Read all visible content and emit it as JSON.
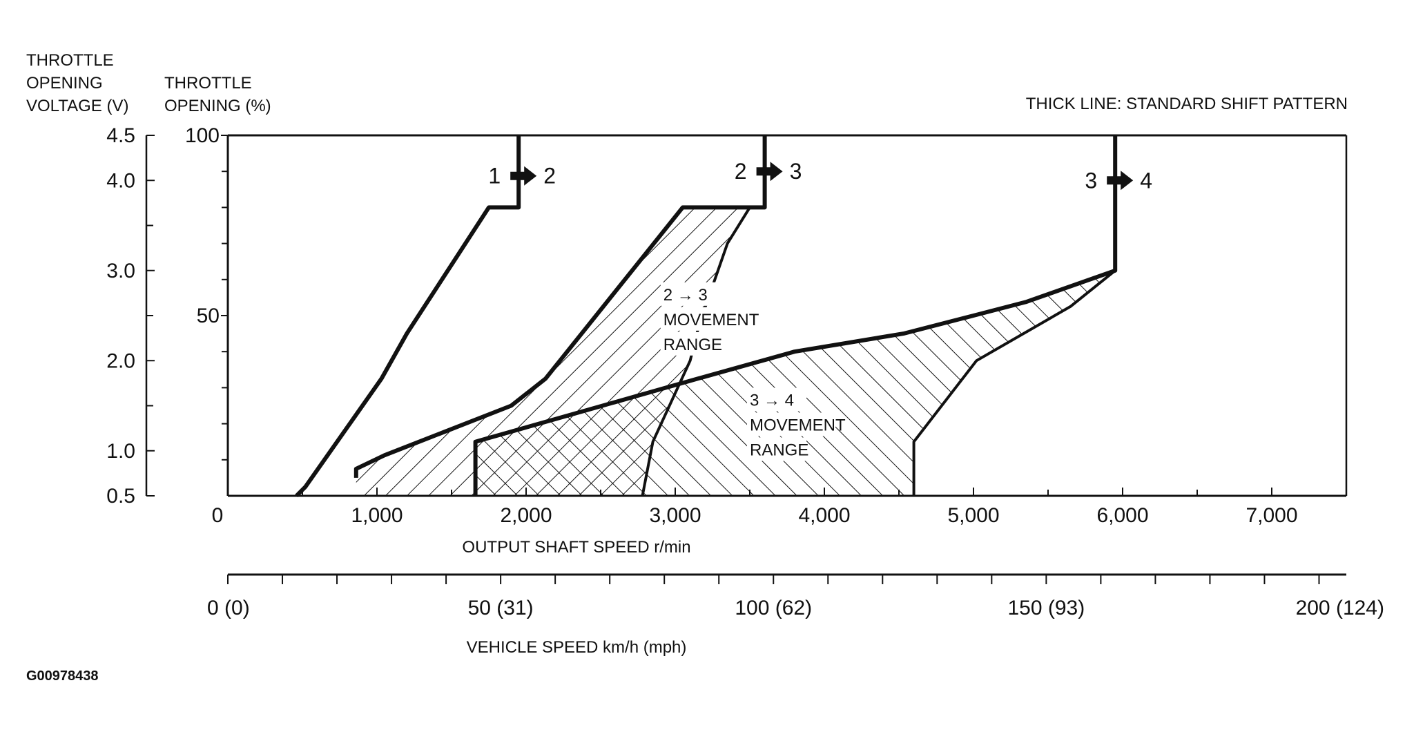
{
  "chart_data": {
    "type": "line",
    "note": "THICK LINE: STANDARD SHIFT PATTERN",
    "image_code": "G00978438",
    "y_axes": {
      "voltage": {
        "title": [
          "THROTTLE",
          "OPENING",
          "VOLTAGE (V)"
        ],
        "ticks": [
          {
            "v": 0.5,
            "label": "0.5"
          },
          {
            "v": 1.0,
            "label": "1.0"
          },
          {
            "v": 2.0,
            "label": "2.0"
          },
          {
            "v": 3.0,
            "label": "3.0"
          },
          {
            "v": 4.0,
            "label": "4.0"
          },
          {
            "v": 4.5,
            "label": "4.5"
          }
        ],
        "range": [
          0.5,
          4.5
        ]
      },
      "percent": {
        "title": [
          "THROTTLE",
          "OPENING (%)"
        ],
        "ticks": [
          {
            "v": 50,
            "label": "50"
          },
          {
            "v": 100,
            "label": "100"
          }
        ],
        "range": [
          0,
          100
        ]
      }
    },
    "x_axes": {
      "rpm": {
        "title": "OUTPUT SHAFT SPEED r/min",
        "ticks": [
          {
            "v": 0,
            "label": "0"
          },
          {
            "v": 1000,
            "label": "1,000"
          },
          {
            "v": 2000,
            "label": "2,000"
          },
          {
            "v": 3000,
            "label": "3,000"
          },
          {
            "v": 4000,
            "label": "4,000"
          },
          {
            "v": 5000,
            "label": "5,000"
          },
          {
            "v": 6000,
            "label": "6,000"
          },
          {
            "v": 7000,
            "label": "7,000"
          }
        ],
        "range": [
          0,
          7500
        ]
      },
      "speed": {
        "title": "VEHICLE SPEED km/h (mph)",
        "ticks": [
          {
            "v": 0,
            "label": "0 (0)"
          },
          {
            "v": 50,
            "label": "50 (31)"
          },
          {
            "v": 100,
            "label": "100 (62)"
          },
          {
            "v": 150,
            "label": "150 (93)"
          },
          {
            "v": 200,
            "label": "200 (124)"
          }
        ],
        "range": [
          0,
          205
        ]
      }
    },
    "series": [
      {
        "name": "1→2",
        "style": "thick",
        "points": [
          [
            460,
            0.5
          ],
          [
            520,
            0.6
          ],
          [
            1030,
            1.8
          ],
          [
            1200,
            2.3
          ],
          [
            1750,
            3.7
          ],
          [
            1950,
            3.7
          ],
          [
            1950,
            4.5
          ]
        ]
      },
      {
        "name": "2→3",
        "style": "thick",
        "points": [
          [
            860,
            0.7
          ],
          [
            860,
            0.8
          ],
          [
            1050,
            0.95
          ],
          [
            1900,
            1.5
          ],
          [
            2130,
            1.8
          ],
          [
            3050,
            3.7
          ],
          [
            3600,
            3.7
          ],
          [
            3600,
            4.5
          ]
        ]
      },
      {
        "name": "3→4",
        "style": "thick",
        "points": [
          [
            1660,
            0.5
          ],
          [
            1660,
            1.1
          ],
          [
            3150,
            1.8
          ],
          [
            3800,
            2.1
          ],
          [
            4530,
            2.3
          ],
          [
            5000,
            2.5
          ],
          [
            5350,
            2.65
          ],
          [
            5950,
            3.0
          ],
          [
            5950,
            4.5
          ]
        ]
      }
    ],
    "regions": [
      {
        "name": "2→3 MOVEMENT RANGE",
        "label": [
          "2 → 3",
          "MOVEMENT",
          "RANGE"
        ],
        "label_at": [
          2920,
          2.67
        ],
        "hatch": "forward",
        "polygon": [
          [
            860,
            0.5
          ],
          [
            860,
            0.8
          ],
          [
            1050,
            0.95
          ],
          [
            1900,
            1.5
          ],
          [
            2130,
            1.8
          ],
          [
            3050,
            3.7
          ],
          [
            3500,
            3.7
          ],
          [
            3350,
            3.3
          ],
          [
            3160,
            2.4
          ],
          [
            3100,
            2.0
          ],
          [
            2850,
            1.1
          ],
          [
            2780,
            0.5
          ]
        ]
      },
      {
        "name": "3→4 MOVEMENT RANGE",
        "label": [
          "3 → 4",
          "MOVEMENT",
          "RANGE"
        ],
        "label_at": [
          3500,
          1.5
        ],
        "hatch": "back",
        "polygon": [
          [
            1660,
            0.5
          ],
          [
            1660,
            1.1
          ],
          [
            3150,
            1.8
          ],
          [
            3800,
            2.1
          ],
          [
            4530,
            2.3
          ],
          [
            5000,
            2.5
          ],
          [
            5350,
            2.65
          ],
          [
            5950,
            3.0
          ],
          [
            5650,
            2.6
          ],
          [
            5020,
            2.0
          ],
          [
            4600,
            1.1
          ],
          [
            4600,
            0.5
          ]
        ]
      }
    ],
    "region_boundaries": [
      {
        "name": "2→3 lower boundary",
        "points": [
          [
            3500,
            3.7
          ],
          [
            3350,
            3.3
          ],
          [
            3160,
            2.4
          ],
          [
            3100,
            2.0
          ],
          [
            2850,
            1.1
          ],
          [
            2780,
            0.5
          ]
        ]
      },
      {
        "name": "3→4 lower boundary",
        "points": [
          [
            5950,
            3.0
          ],
          [
            5650,
            2.6
          ],
          [
            5020,
            2.0
          ],
          [
            4600,
            1.1
          ],
          [
            4600,
            0.5
          ]
        ]
      }
    ],
    "shift_labels": [
      {
        "from": "1",
        "to": "2",
        "x": 1950,
        "y": 4.05
      },
      {
        "from": "2",
        "to": "3",
        "x": 3600,
        "y": 4.1
      },
      {
        "from": "3",
        "to": "4",
        "x": 5950,
        "y": 4.0
      }
    ]
  }
}
